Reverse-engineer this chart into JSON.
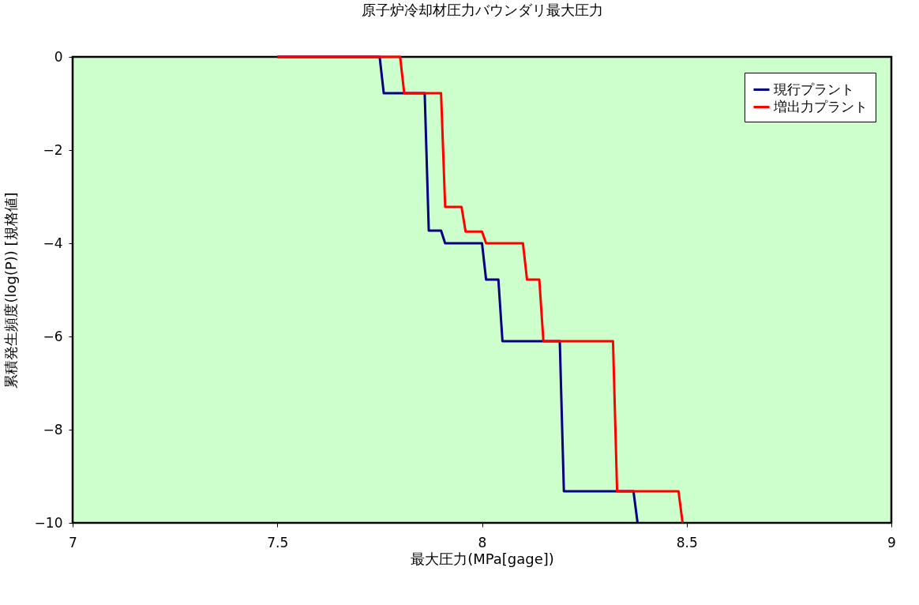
{
  "chart_data": {
    "type": "line",
    "title": "原子炉冷却材圧力バウンダリ最大圧力",
    "xlabel": "最大圧力(MPa[gage])",
    "ylabel": "累積発生頻度(log(P)) [規格値]",
    "xlim": [
      7,
      9
    ],
    "ylim": [
      -10,
      0
    ],
    "xticks": [
      7,
      7.5,
      8,
      8.5,
      9
    ],
    "yticks": [
      -10,
      -8,
      -6,
      -4,
      -2,
      0
    ],
    "grid": false,
    "legend": "top right",
    "marker": "none",
    "line_style": "solid",
    "series": [
      {
        "name": "現行プラント",
        "color": "#000080",
        "x": [
          7.5,
          7.75,
          7.76,
          7.86,
          7.87,
          7.9,
          7.91,
          8.0,
          8.01,
          8.04,
          8.05,
          8.19,
          8.2,
          8.37,
          8.38
        ],
        "values": [
          0,
          0,
          -0.78,
          -0.78,
          -3.73,
          -3.73,
          -4.0,
          -4.0,
          -4.78,
          -4.78,
          -6.1,
          -6.1,
          -9.32,
          -9.32,
          -10
        ]
      },
      {
        "name": "増出力プラント",
        "color": "#ff0000",
        "x": [
          7.5,
          7.8,
          7.81,
          7.9,
          7.91,
          7.95,
          7.96,
          8.0,
          8.01,
          8.1,
          8.11,
          8.14,
          8.15,
          8.32,
          8.33,
          8.48,
          8.49
        ],
        "values": [
          0,
          0,
          -0.78,
          -0.78,
          -3.22,
          -3.22,
          -3.75,
          -3.75,
          -4.0,
          -4.0,
          -4.78,
          -4.78,
          -6.1,
          -6.1,
          -9.32,
          -9.32,
          -10
        ]
      }
    ]
  }
}
